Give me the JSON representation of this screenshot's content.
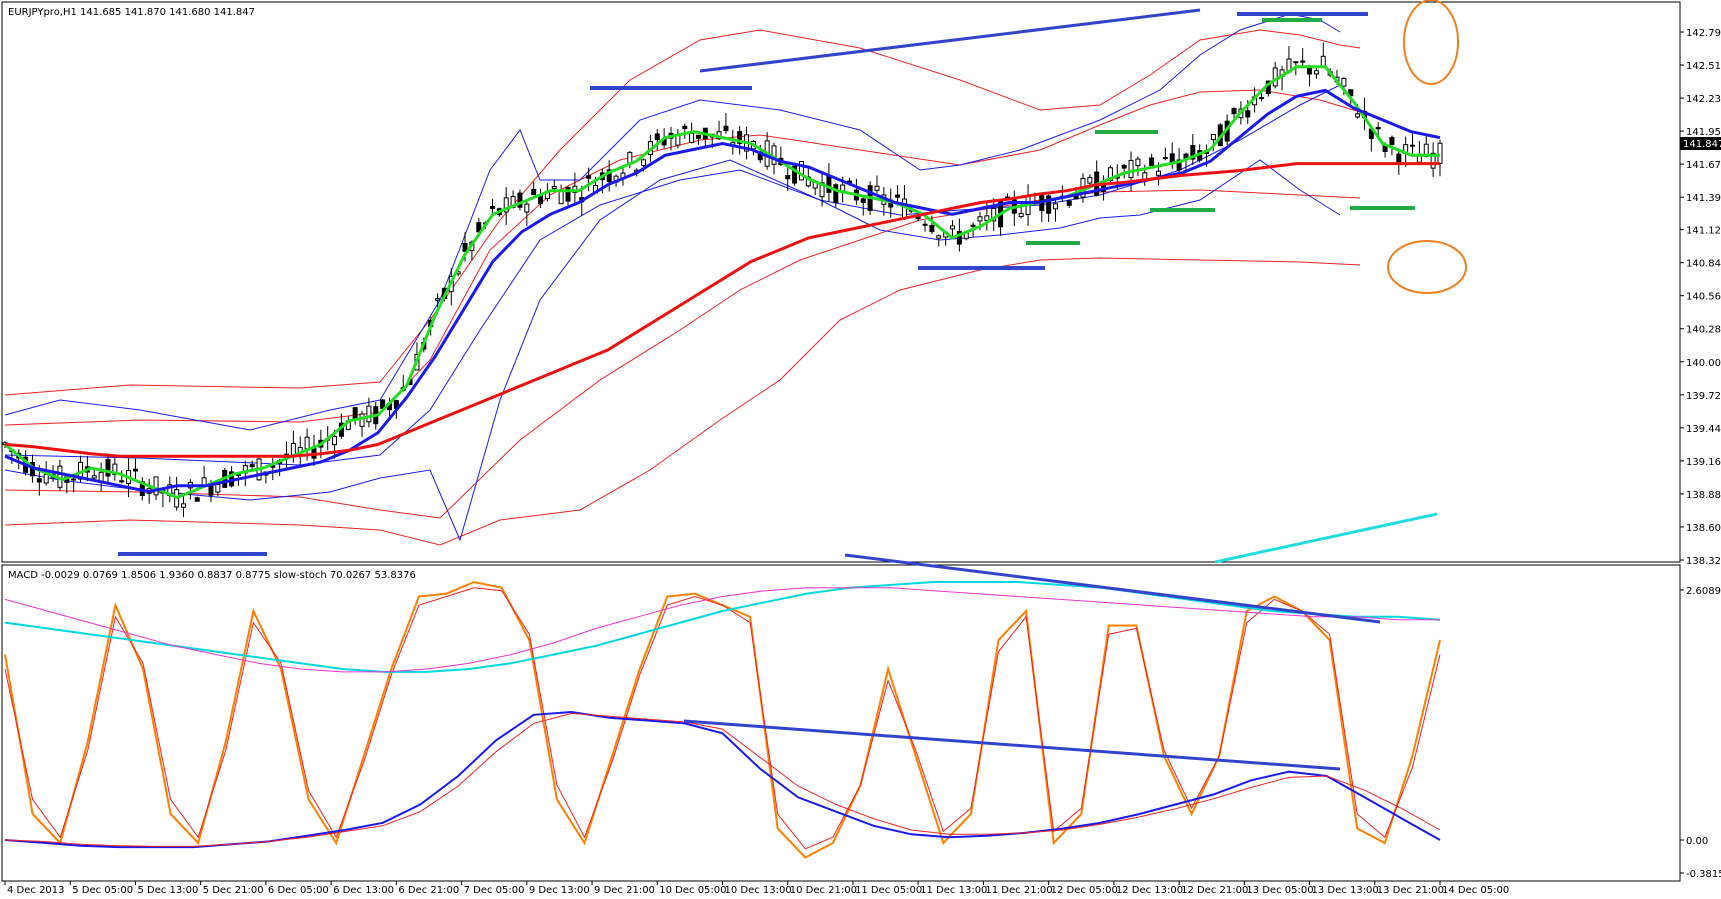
{
  "chart_data": [
    {
      "type": "candlestick",
      "title": "EURJPYpro,H1  141.685 141.870 141.680 141.847",
      "price_ticks": [
        "142.795",
        "142.515",
        "142.235",
        "141.955",
        "141.675",
        "141.395",
        "141.120",
        "140.840",
        "140.560",
        "140.280",
        "140.000",
        "139.720",
        "139.440",
        "139.160",
        "138.880",
        "138.600",
        "138.320"
      ],
      "ylim": [
        138.32,
        142.795
      ],
      "last_price": "141.847",
      "series": [
        {
          "kind": "ema-fast",
          "color": "#22dd22",
          "values": [
            139.3,
            139.1,
            139.0,
            139.1,
            139.05,
            138.95,
            138.85,
            138.95,
            139.05,
            139.1,
            139.2,
            139.3,
            139.5,
            139.55,
            139.8,
            140.4,
            140.9,
            141.25,
            141.35,
            141.45,
            141.45,
            141.6,
            141.7,
            141.9,
            141.95,
            141.9,
            141.85,
            141.7,
            141.55,
            141.45,
            141.4,
            141.35,
            141.25,
            141.05,
            141.15,
            141.3,
            141.35,
            141.4,
            141.5,
            141.6,
            141.65,
            141.7,
            141.8,
            142.1,
            142.35,
            142.5,
            142.5,
            142.2,
            141.85,
            141.75,
            141.75
          ]
        },
        {
          "kind": "ema-mid",
          "color": "#1a1aee",
          "values": [
            139.2,
            139.1,
            139.05,
            139.0,
            138.95,
            138.9,
            138.95,
            138.95,
            139.0,
            139.05,
            139.1,
            139.15,
            139.25,
            139.4,
            139.7,
            140.05,
            140.45,
            140.85,
            141.1,
            141.25,
            141.35,
            141.5,
            141.6,
            141.75,
            141.8,
            141.85,
            141.8,
            141.7,
            141.65,
            141.55,
            141.45,
            141.35,
            141.3,
            141.25,
            141.3,
            141.35,
            141.35,
            141.4,
            141.45,
            141.5,
            141.55,
            141.6,
            141.7,
            141.9,
            142.1,
            142.25,
            142.3,
            142.15,
            142.05,
            141.95,
            141.9
          ]
        },
        {
          "kind": "ema-slow",
          "color": "#ee1111",
          "values": [
            139.3,
            139.28,
            139.25,
            139.22,
            139.2,
            139.2,
            139.2,
            139.2,
            139.2,
            139.2,
            139.2,
            139.22,
            139.25,
            139.3,
            139.4,
            139.5,
            139.6,
            139.7,
            139.8,
            139.9,
            140.0,
            140.1,
            140.25,
            140.4,
            140.55,
            140.7,
            140.85,
            140.95,
            141.05,
            141.1,
            141.15,
            141.2,
            141.25,
            141.3,
            141.35,
            141.38,
            141.42,
            141.45,
            141.5,
            141.52,
            141.55,
            141.58,
            141.6,
            141.62,
            141.65,
            141.68,
            141.68,
            141.68,
            141.68,
            141.68,
            141.68
          ]
        }
      ]
    },
    {
      "type": "line",
      "title": "MACD -0.0029 0.0769 1.8506 1.9360 0.8837 0.8775  slow-stoch 70.0267 53.8376",
      "ticks": [
        "2.6089",
        "0.00",
        "-0.3815"
      ],
      "ylim": [
        -0.3815,
        2.6089
      ],
      "series": [
        {
          "name": "stoch-main",
          "color": "#ff8000",
          "values": [
            75,
            20,
            10,
            45,
            92,
            70,
            20,
            10,
            45,
            90,
            70,
            25,
            10,
            40,
            70,
            95,
            96,
            100,
            98,
            80,
            25,
            10,
            40,
            70,
            95,
            96,
            92,
            88,
            15,
            5,
            10,
            30,
            70,
            40,
            10,
            20,
            80,
            90,
            10,
            20,
            85,
            85,
            40,
            20,
            40,
            90,
            95,
            90,
            80,
            15,
            10,
            40,
            80
          ]
        },
        {
          "name": "stoch-signal",
          "color": "#ee2222",
          "values": [
            70,
            25,
            12,
            42,
            88,
            72,
            25,
            12,
            42,
            86,
            72,
            28,
            12,
            38,
            68,
            92,
            95,
            98,
            97,
            82,
            30,
            12,
            38,
            68,
            92,
            95,
            92,
            86,
            20,
            8,
            12,
            30,
            66,
            42,
            14,
            22,
            76,
            88,
            14,
            22,
            82,
            84,
            42,
            22,
            40,
            86,
            94,
            90,
            82,
            20,
            12,
            36,
            75
          ]
        },
        {
          "name": "slow-ma-cyan",
          "color": "#00d8e0",
          "values": [
            86,
            84,
            82,
            80,
            78,
            76,
            74,
            72,
            70,
            69,
            69,
            70,
            72,
            75,
            78,
            82,
            86,
            90,
            93,
            96,
            98,
            99,
            100,
            100,
            100,
            99,
            98,
            96,
            94,
            92,
            90,
            89,
            88,
            88,
            87
          ]
        },
        {
          "name": "slow-ma-magenta",
          "color": "#ee33cc",
          "values": [
            94,
            90,
            86,
            82,
            78,
            75,
            72,
            70,
            69,
            69,
            70,
            72,
            75,
            79,
            84,
            88,
            92,
            95,
            97,
            98,
            98,
            98,
            97,
            96,
            95,
            94,
            93,
            92,
            91,
            90,
            89,
            88,
            88,
            87,
            87
          ]
        },
        {
          "name": "macd-main",
          "color": "#1a1aee",
          "values": [
            0.0,
            -0.02,
            -0.04,
            -0.05,
            -0.05,
            -0.05,
            -0.03,
            -0.01,
            0.03,
            0.07,
            0.12,
            0.25,
            0.45,
            0.7,
            0.88,
            0.9,
            0.86,
            0.84,
            0.82,
            0.75,
            0.5,
            0.3,
            0.2,
            0.1,
            0.04,
            0.02,
            0.03,
            0.05,
            0.08,
            0.12,
            0.18,
            0.25,
            0.32,
            0.42,
            0.48,
            0.45,
            0.3,
            0.15,
            0.0
          ]
        },
        {
          "name": "macd-signal",
          "color": "#ee2222",
          "values": [
            0.0,
            -0.01,
            -0.03,
            -0.04,
            -0.045,
            -0.045,
            -0.03,
            -0.01,
            0.02,
            0.06,
            0.1,
            0.2,
            0.38,
            0.62,
            0.82,
            0.89,
            0.87,
            0.85,
            0.83,
            0.78,
            0.58,
            0.38,
            0.25,
            0.15,
            0.07,
            0.04,
            0.04,
            0.05,
            0.07,
            0.11,
            0.16,
            0.22,
            0.29,
            0.37,
            0.44,
            0.45,
            0.35,
            0.22,
            0.07
          ]
        }
      ]
    }
  ],
  "x_ticks": [
    "4 Dec 2013",
    "5 Dec 05:00",
    "5 Dec 13:00",
    "5 Dec 21:00",
    "6 Dec 05:00",
    "6 Dec 13:00",
    "6 Dec 21:00",
    "7 Dec 05:00",
    "9 Dec 13:00",
    "9 Dec 21:00",
    "10 Dec 05:00",
    "10 Dec 13:00",
    "10 Dec 21:00",
    "11 Dec 05:00",
    "11 Dec 13:00",
    "11 Dec 21:00",
    "12 Dec 05:00",
    "12 Dec 13:00",
    "12 Dec 21:00",
    "13 Dec 05:00",
    "13 Dec 13:00",
    "13 Dec 21:00",
    "14 Dec 05:00"
  ],
  "colors": {
    "axis": "#000000",
    "annot": "#3344cc",
    "green": "#22aa44",
    "orange": "#f08020"
  }
}
